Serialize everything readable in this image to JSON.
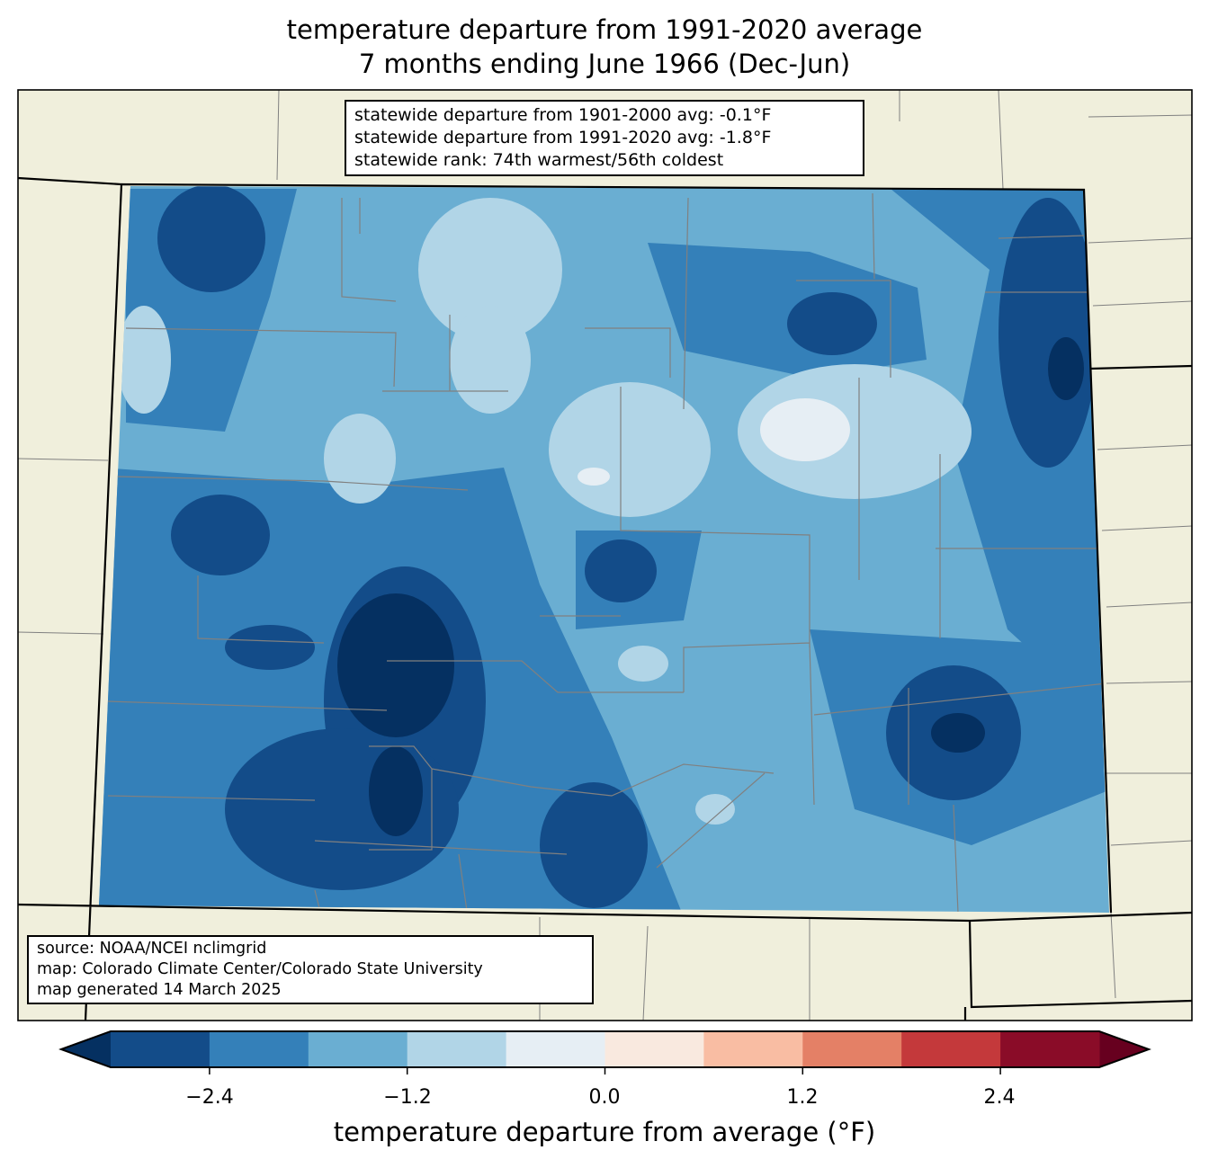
{
  "title": {
    "line1": "temperature departure from 1991-2020 average",
    "line2": "7 months ending June 1966 (Dec-Jun)"
  },
  "stats_box": {
    "line1": "statewide departure from 1901-2000 avg: -0.1°F",
    "line2": "statewide departure from 1991-2020 avg: -1.8°F",
    "line3": "statewide rank: 74th warmest/56th coldest"
  },
  "source_box": {
    "line1": "source: NOAA/NCEI nclimgrid",
    "line2": "map: Colorado Climate Center/Colorado State University",
    "line3": "map generated 14 March 2025"
  },
  "colorbar": {
    "label": "temperature departure from average (°F)",
    "ticks": [
      "−2.4",
      "−1.2",
      "0.0",
      "1.2",
      "2.4"
    ],
    "tick_values": [
      -2.4,
      -1.2,
      0.0,
      1.2,
      2.4
    ],
    "bounds": [
      -3.0,
      3.0
    ],
    "step": 0.6,
    "under_color": "#053061",
    "over_color": "#67001f",
    "colors": [
      "#134c89",
      "#3480b9",
      "#6aaed2",
      "#b1d5e7",
      "#e6eef4",
      "#f9e9df",
      "#f9bda3",
      "#e48066",
      "#c4393b",
      "#8a0c28"
    ]
  },
  "map_colors": {
    "land": "#f0efdc",
    "county_line": "#808080",
    "state_line": "#000000"
  }
}
